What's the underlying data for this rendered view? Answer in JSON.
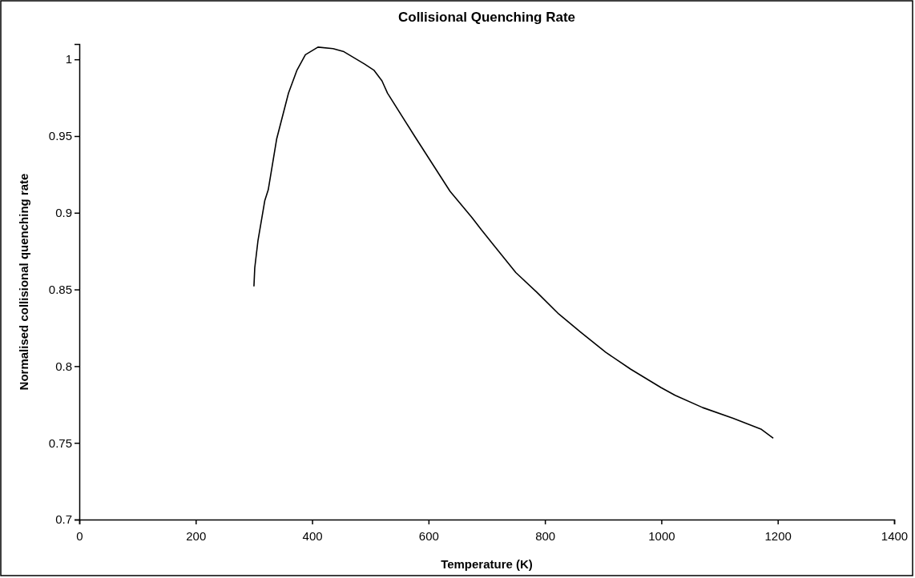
{
  "chart_data": {
    "type": "line",
    "title": "Collisional Quenching Rate",
    "xlabel": "Temperature (K)",
    "ylabel": "Normalised collisional quenching rate",
    "xlim": [
      0,
      1400
    ],
    "xticks": [
      0,
      200,
      400,
      600,
      800,
      1000,
      1200,
      1400
    ],
    "ylim": [
      0.7,
      1.01
    ],
    "yticks": [
      0.7,
      0.75,
      0.8,
      0.85,
      0.9,
      0.95,
      1
    ],
    "grid": false,
    "series": [
      {
        "color": "#000000",
        "x": [
          300,
          301.4,
          307,
          318.7,
          324.6,
          339,
          359.4,
          374,
          388.4,
          410,
          436,
          454.6,
          489.8,
          506,
          520,
          529.5,
          576,
          637,
          674.3,
          690.5,
          711.7,
          750,
          786.5,
          823.7,
          861.7,
          904.6,
          947.5,
          999.7,
          1023.5,
          1071,
          1123.3,
          1171,
          1192.3
        ],
        "values": [
          0.852,
          0.864,
          0.882,
          0.908,
          0.915,
          0.948,
          0.978,
          0.993,
          1.003,
          1.008,
          1.007,
          1.005,
          0.997,
          0.993,
          0.986,
          0.978,
          0.95,
          0.914,
          0.897,
          0.889,
          0.879,
          0.861,
          0.848,
          0.834,
          0.822,
          0.809,
          0.798,
          0.786,
          0.781,
          0.773,
          0.766,
          0.759,
          0.753
        ]
      }
    ]
  }
}
